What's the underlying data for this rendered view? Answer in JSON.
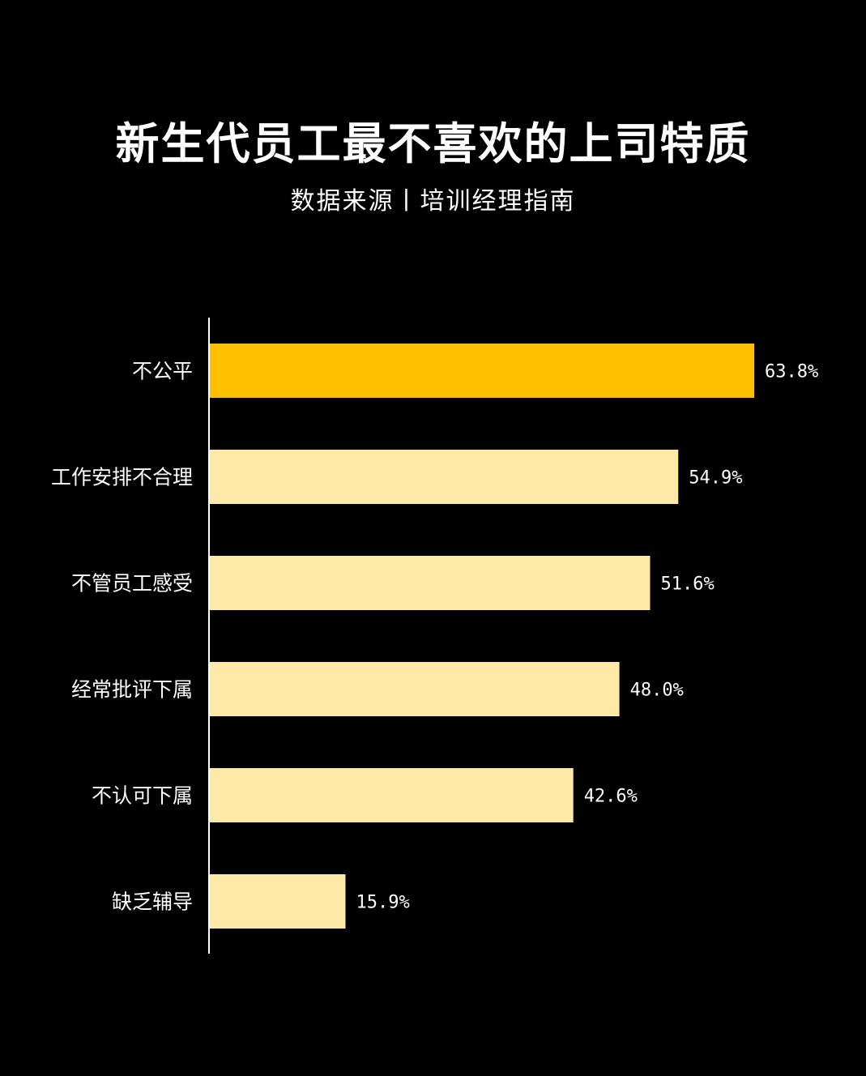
{
  "chart_data": {
    "type": "bar",
    "orientation": "horizontal",
    "title": "新生代员工最不喜欢的上司特质",
    "subtitle": "数据来源丨培训经理指南",
    "categories": [
      "不公平",
      "工作安排不合理",
      "不管员工感受",
      "经常批评下属",
      "不认可下属",
      "缺乏辅导"
    ],
    "values": [
      63.8,
      54.9,
      51.6,
      48.0,
      42.6,
      15.9
    ],
    "value_labels": [
      "63.8%",
      "54.9%",
      "51.6%",
      "48.0%",
      "42.6%",
      "15.9%"
    ],
    "unit": "%",
    "xlim": [
      0,
      63.8
    ],
    "grid": false,
    "colors": {
      "highlight": "#FFC000",
      "default": "#FFE9A6",
      "axis": "#ffffff",
      "background": "#000000"
    }
  }
}
